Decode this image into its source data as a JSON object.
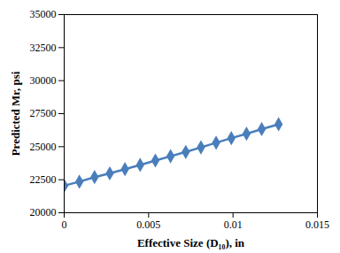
{
  "chart_data": {
    "type": "line",
    "x": [
      0,
      0.0009,
      0.0018,
      0.0027,
      0.0036,
      0.0045,
      0.0054,
      0.0063,
      0.0072,
      0.0081,
      0.009,
      0.0099,
      0.0108,
      0.0117,
      0.0127
    ],
    "values": [
      22050,
      22350,
      22700,
      22980,
      23300,
      23620,
      23950,
      24280,
      24600,
      24950,
      25300,
      25650,
      25980,
      26330,
      26700
    ],
    "color": "#4a7ebb",
    "marker": "diamond",
    "xlabel": "Effective Size (D₁₀), in",
    "ylabel": "Predicted Mr, psi",
    "xlim": [
      0,
      0.015
    ],
    "xticks": [
      0,
      0.005,
      0.01,
      0.015
    ],
    "ylim": [
      20000,
      35000
    ],
    "yticks": [
      20000,
      22500,
      25000,
      27500,
      30000,
      32500,
      35000
    ],
    "grid": false
  }
}
